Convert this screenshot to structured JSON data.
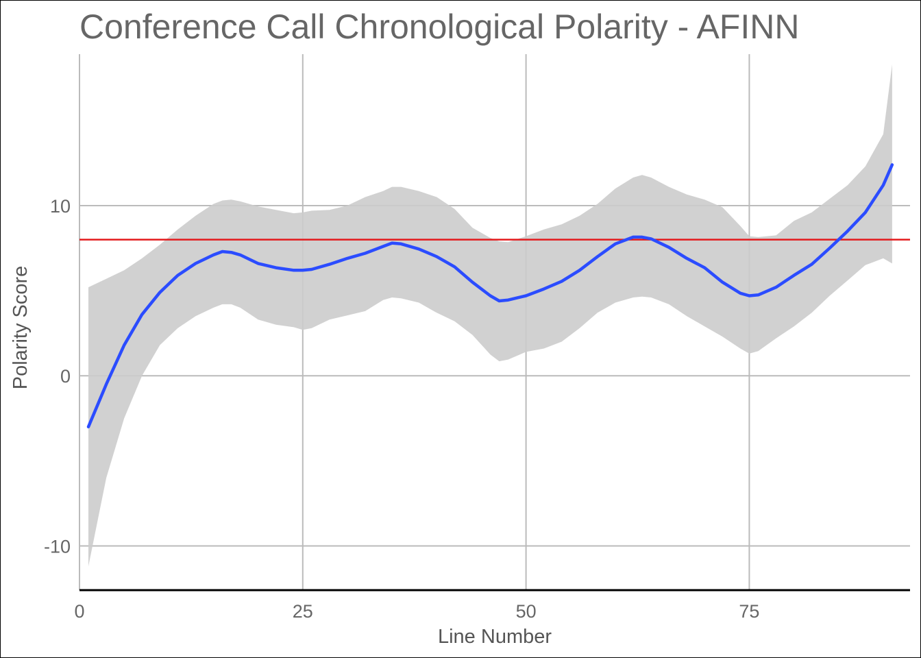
{
  "chart_data": {
    "type": "line",
    "title": "Conference Call Chronological Polarity - AFINN",
    "xlabel": "Line Number",
    "ylabel": "Polarity Score",
    "xlim": [
      0,
      93
    ],
    "ylim": [
      -12.6,
      18.9
    ],
    "x_ticks": [
      0,
      25,
      50,
      75
    ],
    "y_ticks": [
      -10,
      0,
      10
    ],
    "grid": true,
    "reference_line": {
      "y": 8.0,
      "color": "#e31a1c"
    },
    "colors": {
      "line": "#2b4cff",
      "band": "#cccccc",
      "grid": "#bbbbbb"
    },
    "series": [
      {
        "type": "smooth",
        "x": [
          1,
          3,
          5,
          7,
          9,
          11,
          13,
          15,
          16,
          17,
          18,
          20,
          22,
          24,
          25,
          26,
          28,
          30,
          32,
          34,
          35,
          36,
          38,
          40,
          42,
          44,
          46,
          47,
          48,
          50,
          52,
          54,
          56,
          58,
          60,
          62,
          63,
          64,
          66,
          68,
          70,
          72,
          74,
          75,
          76,
          78,
          80,
          82,
          84,
          86,
          88,
          90,
          91
        ],
        "y": [
          -3.0,
          -0.5,
          1.8,
          3.6,
          4.9,
          5.9,
          6.6,
          7.1,
          7.3,
          7.25,
          7.1,
          6.6,
          6.35,
          6.2,
          6.2,
          6.25,
          6.55,
          6.9,
          7.2,
          7.6,
          7.8,
          7.75,
          7.45,
          7.0,
          6.4,
          5.5,
          4.7,
          4.4,
          4.45,
          4.7,
          5.1,
          5.55,
          6.2,
          7.0,
          7.75,
          8.15,
          8.15,
          8.05,
          7.55,
          6.9,
          6.35,
          5.5,
          4.85,
          4.7,
          4.75,
          5.2,
          5.9,
          6.55,
          7.5,
          8.5,
          9.6,
          11.2,
          12.4
        ],
        "lower": [
          -11.2,
          -6.0,
          -2.5,
          0.0,
          1.8,
          2.8,
          3.5,
          4.0,
          4.2,
          4.2,
          4.0,
          3.3,
          3.0,
          2.85,
          2.7,
          2.8,
          3.3,
          3.55,
          3.8,
          4.45,
          4.6,
          4.55,
          4.3,
          3.7,
          3.2,
          2.4,
          1.25,
          0.85,
          0.95,
          1.4,
          1.6,
          2.0,
          2.8,
          3.7,
          4.3,
          4.6,
          4.65,
          4.6,
          4.2,
          3.5,
          2.9,
          2.3,
          1.6,
          1.3,
          1.45,
          2.2,
          2.9,
          3.7,
          4.7,
          5.6,
          6.5,
          6.9,
          6.6
        ],
        "upper": [
          5.2,
          5.7,
          6.2,
          6.9,
          7.7,
          8.6,
          9.4,
          10.1,
          10.3,
          10.35,
          10.25,
          9.95,
          9.75,
          9.55,
          9.6,
          9.7,
          9.75,
          10.0,
          10.5,
          10.85,
          11.1,
          11.1,
          10.85,
          10.5,
          9.8,
          8.7,
          8.1,
          7.9,
          7.85,
          8.2,
          8.6,
          8.9,
          9.4,
          10.1,
          11.0,
          11.65,
          11.8,
          11.65,
          11.1,
          10.65,
          10.35,
          9.9,
          8.8,
          8.2,
          8.15,
          8.25,
          9.1,
          9.6,
          10.4,
          11.2,
          12.3,
          14.2,
          18.3
        ]
      }
    ]
  }
}
